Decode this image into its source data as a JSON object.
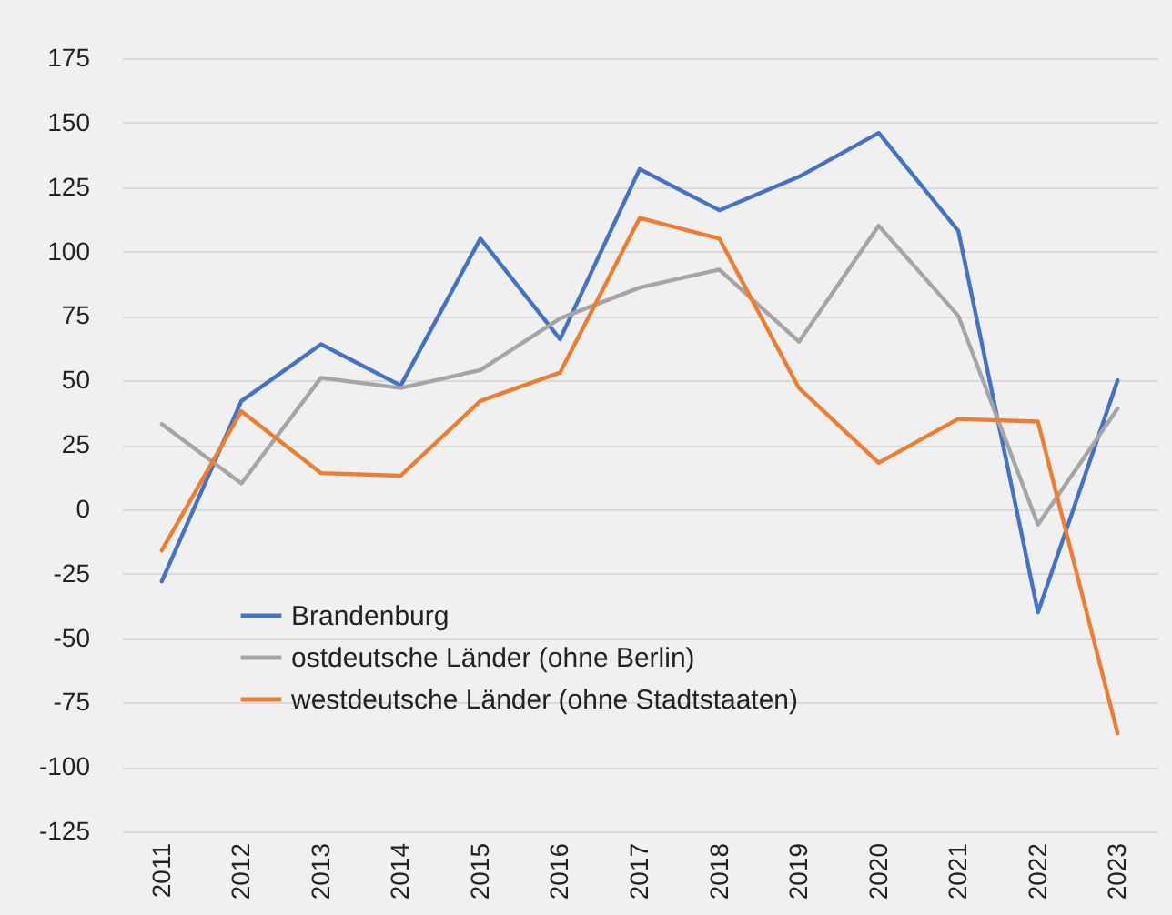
{
  "chart_data": {
    "type": "line",
    "categories": [
      "2011",
      "2012",
      "2013",
      "2014",
      "2015",
      "2016",
      "2017",
      "2018",
      "2019",
      "2020",
      "2021",
      "2022",
      "2023"
    ],
    "series": [
      {
        "name": "Brandenburg",
        "color": "#4472c4",
        "values": [
          -28,
          42,
          64,
          48,
          105,
          66,
          132,
          116,
          129,
          146,
          108,
          -40,
          50
        ]
      },
      {
        "name": "ostdeutsche Länder (ohne Berlin)",
        "color": "#a5a5a5",
        "values": [
          33,
          10,
          51,
          47,
          54,
          74,
          86,
          93,
          65,
          110,
          75,
          -6,
          39
        ]
      },
      {
        "name": "westdeutsche Länder (ohne Stadtstaaten)",
        "color": "#ed7d31",
        "values": [
          -16,
          38,
          14,
          13,
          42,
          53,
          113,
          105,
          47,
          18,
          35,
          34,
          -87
        ]
      }
    ],
    "ylim": [
      -125,
      175
    ],
    "yticks": [
      -125,
      -100,
      -75,
      -50,
      -25,
      0,
      25,
      50,
      75,
      100,
      125,
      150,
      175
    ],
    "grid": "y",
    "legend": "bottom left",
    "marker": "none",
    "line_style": "solid"
  }
}
